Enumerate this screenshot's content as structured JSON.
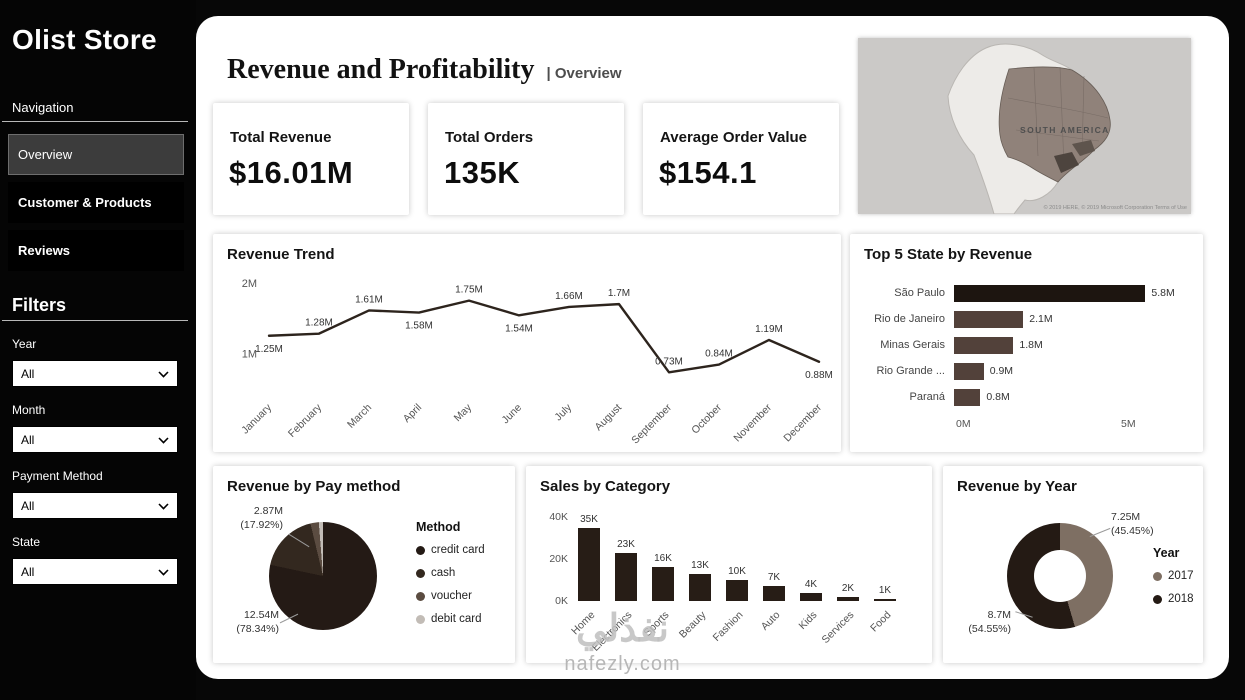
{
  "sidebar": {
    "title": "Olist Store",
    "navigation_label": "Navigation",
    "nav_items": [
      {
        "label": "Overview",
        "active": true
      },
      {
        "label": "Customer & Products",
        "active": false
      },
      {
        "label": "Reviews",
        "active": false
      }
    ],
    "filters_label": "Filters",
    "filters": [
      {
        "label": "Year",
        "value": "All"
      },
      {
        "label": "Month",
        "value": "All"
      },
      {
        "label": "Payment Method",
        "value": "All"
      },
      {
        "label": "State",
        "value": "All"
      }
    ]
  },
  "header": {
    "title": "Revenue and Profitability",
    "subtitle": "| Overview"
  },
  "kpis": [
    {
      "label": "Total Revenue",
      "value": "$16.01M"
    },
    {
      "label": "Total Orders",
      "value": "135K"
    },
    {
      "label": "Average Order Value",
      "value": "$154.1"
    }
  ],
  "map": {
    "region_label": "SOUTH AMERICA",
    "attribution": "© 2019 HERE, © 2019 Microsoft Corporation  Terms of Use"
  },
  "chart_data": [
    {
      "type": "line",
      "title": "Revenue Trend",
      "categories": [
        "January",
        "February",
        "March",
        "April",
        "May",
        "June",
        "July",
        "August",
        "September",
        "October",
        "November",
        "December"
      ],
      "values": [
        1.25,
        1.28,
        1.61,
        1.58,
        1.75,
        1.54,
        1.66,
        1.7,
        0.73,
        0.84,
        1.19,
        0.88
      ],
      "labels": [
        "1.25M",
        "1.28M",
        "1.61M",
        "1.58M",
        "1.75M",
        "1.54M",
        "1.66M",
        "1.7M",
        "0.73M",
        "0.84M",
        "1.19M",
        "0.88M"
      ],
      "label_pos": [
        "below",
        "above",
        "above",
        "below",
        "above",
        "below",
        "above",
        "above",
        "above",
        "above",
        "above",
        "below"
      ],
      "yticks": [
        {
          "value": 1,
          "label": "1M"
        },
        {
          "value": 2,
          "label": "2M"
        }
      ],
      "ylim": [
        0.45,
        2.1
      ],
      "line_color": "#2d241d"
    },
    {
      "type": "bar-horizontal",
      "title": "Top 5 State by Revenue",
      "categories": [
        "São Paulo",
        "Rio de Janeiro",
        "Minas Gerais",
        "Rio Grande ...",
        "Paraná"
      ],
      "values": [
        5.8,
        2.1,
        1.8,
        0.9,
        0.8
      ],
      "labels": [
        "5.8M",
        "2.1M",
        "1.8M",
        "0.9M",
        "0.8M"
      ],
      "xlim": [
        0,
        6
      ],
      "xticks": [
        {
          "value": 0,
          "label": "0M"
        },
        {
          "value": 5,
          "label": "5M"
        }
      ],
      "bar_colors": [
        "#1d1510",
        "#52413a",
        "#52413a",
        "#52413a",
        "#52413a"
      ]
    },
    {
      "type": "pie",
      "title": "Revenue by Pay method",
      "legend_title": "Method",
      "slices": [
        {
          "name": "credit card",
          "pct": 78.34,
          "value_label": "12.54M",
          "pct_label": "(78.34%)",
          "color": "#241a15"
        },
        {
          "name": "cash",
          "pct": 17.92,
          "value_label": "2.87M",
          "pct_label": "(17.92%)",
          "color": "#33281f"
        },
        {
          "name": "voucher",
          "pct": 2.5,
          "color": "#5b4c41"
        },
        {
          "name": "debit card",
          "pct": 1.24,
          "color": "#c2bcb6"
        }
      ]
    },
    {
      "type": "bar",
      "title": "Sales by Category",
      "categories": [
        "Home",
        "Electronics",
        "Sports",
        "Beauty",
        "Fashion",
        "Auto",
        "Kids",
        "Services",
        "Food"
      ],
      "values": [
        35,
        23,
        16,
        13,
        10,
        7,
        4,
        2,
        1
      ],
      "labels": [
        "35K",
        "23K",
        "16K",
        "13K",
        "10K",
        "7K",
        "4K",
        "2K",
        "1K"
      ],
      "yticks": [
        {
          "value": 0,
          "label": "0K"
        },
        {
          "value": 20,
          "label": "20K"
        },
        {
          "value": 40,
          "label": "40K"
        }
      ],
      "ylim": [
        0,
        40
      ],
      "bar_color": "#271d16"
    },
    {
      "type": "donut",
      "title": "Revenue by Year",
      "legend_title": "Year",
      "slices": [
        {
          "name": "2017",
          "pct": 45.45,
          "value_label": "7.25M",
          "pct_label": "(45.45%)",
          "color": "#7e6f63"
        },
        {
          "name": "2018",
          "pct": 54.55,
          "value_label": "8.7M",
          "pct_label": "(54.55%)",
          "color": "#241a14"
        }
      ]
    }
  ],
  "watermark": {
    "line1": "نفذلي",
    "line2": "nafezly.com"
  }
}
